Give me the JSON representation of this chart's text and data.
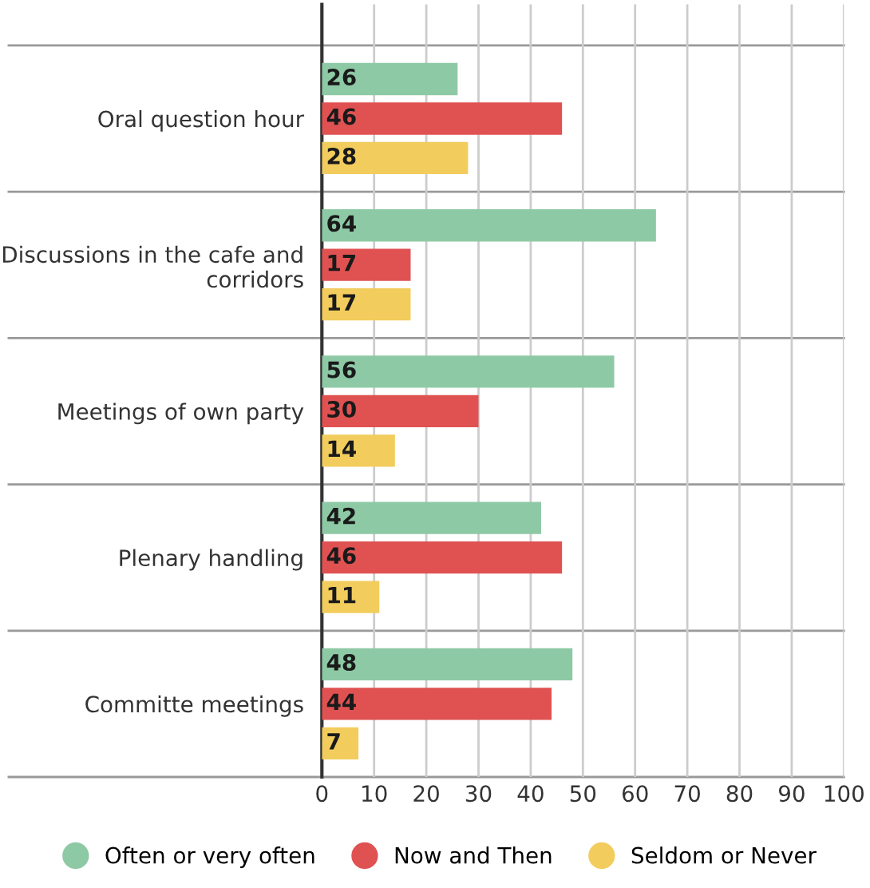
{
  "chart_data": {
    "type": "bar",
    "orientation": "horizontal",
    "categories": [
      "Oral question hour",
      "Discussions in the cafe and corridors",
      "Meetings of own party",
      "Plenary handling",
      "Committe meetings"
    ],
    "series": [
      {
        "name": "Often or very often",
        "color": "#8ec9a5",
        "values": [
          26,
          64,
          56,
          42,
          48
        ]
      },
      {
        "name": "Now and Then",
        "color": "#e05252",
        "values": [
          46,
          17,
          30,
          46,
          44
        ]
      },
      {
        "name": "Seldom or Never",
        "color": "#f2cd5d",
        "values": [
          28,
          17,
          14,
          11,
          7
        ]
      }
    ],
    "xlim": [
      0,
      100
    ],
    "xticks": [
      0,
      10,
      20,
      30,
      40,
      50,
      60,
      70,
      80,
      90,
      100
    ],
    "grid": true,
    "legend": "bottom",
    "data_labels": true,
    "marker": "circle"
  }
}
